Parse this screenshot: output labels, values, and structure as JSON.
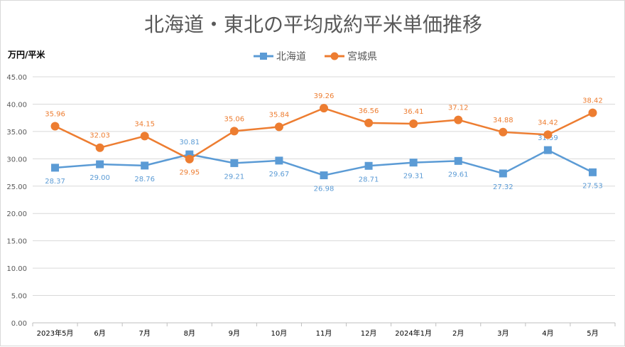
{
  "chart_data": {
    "type": "line",
    "title": "北海道・東北の平均成約平米単価推移",
    "ylabel": "万円/平米",
    "xlabel": "",
    "categories": [
      "2023年5月",
      "6月",
      "7月",
      "8月",
      "9月",
      "10月",
      "11月",
      "12月",
      "2024年1月",
      "2月",
      "3月",
      "4月",
      "5月"
    ],
    "ylim": [
      0,
      45
    ],
    "yticks": [
      "0.00",
      "5.00",
      "10.00",
      "15.00",
      "20.00",
      "25.00",
      "30.00",
      "35.00",
      "40.00",
      "45.00"
    ],
    "grid": true,
    "legend_position": "top",
    "series": [
      {
        "name": "北海道",
        "marker": "square",
        "color": "#5b9bd5",
        "values": [
          28.37,
          29.0,
          28.76,
          30.81,
          29.21,
          29.67,
          26.98,
          28.71,
          29.31,
          29.61,
          27.32,
          31.59,
          27.53
        ],
        "labels": [
          "28.37",
          "29.00",
          "28.76",
          "30.81",
          "29.21",
          "29.67",
          "26.98",
          "28.71",
          "29.31",
          "29.61",
          "27.32",
          "31.59",
          "27.53"
        ]
      },
      {
        "name": "宮城県",
        "marker": "circle",
        "color": "#ed7d31",
        "values": [
          35.96,
          32.03,
          34.15,
          29.95,
          35.06,
          35.84,
          39.26,
          36.56,
          36.41,
          37.12,
          34.88,
          34.42,
          38.42
        ],
        "labels": [
          "35.96",
          "32.03",
          "34.15",
          "29.95",
          "35.06",
          "35.84",
          "39.26",
          "36.56",
          "36.41",
          "37.12",
          "34.88",
          "34.42",
          "38.42"
        ]
      }
    ]
  }
}
